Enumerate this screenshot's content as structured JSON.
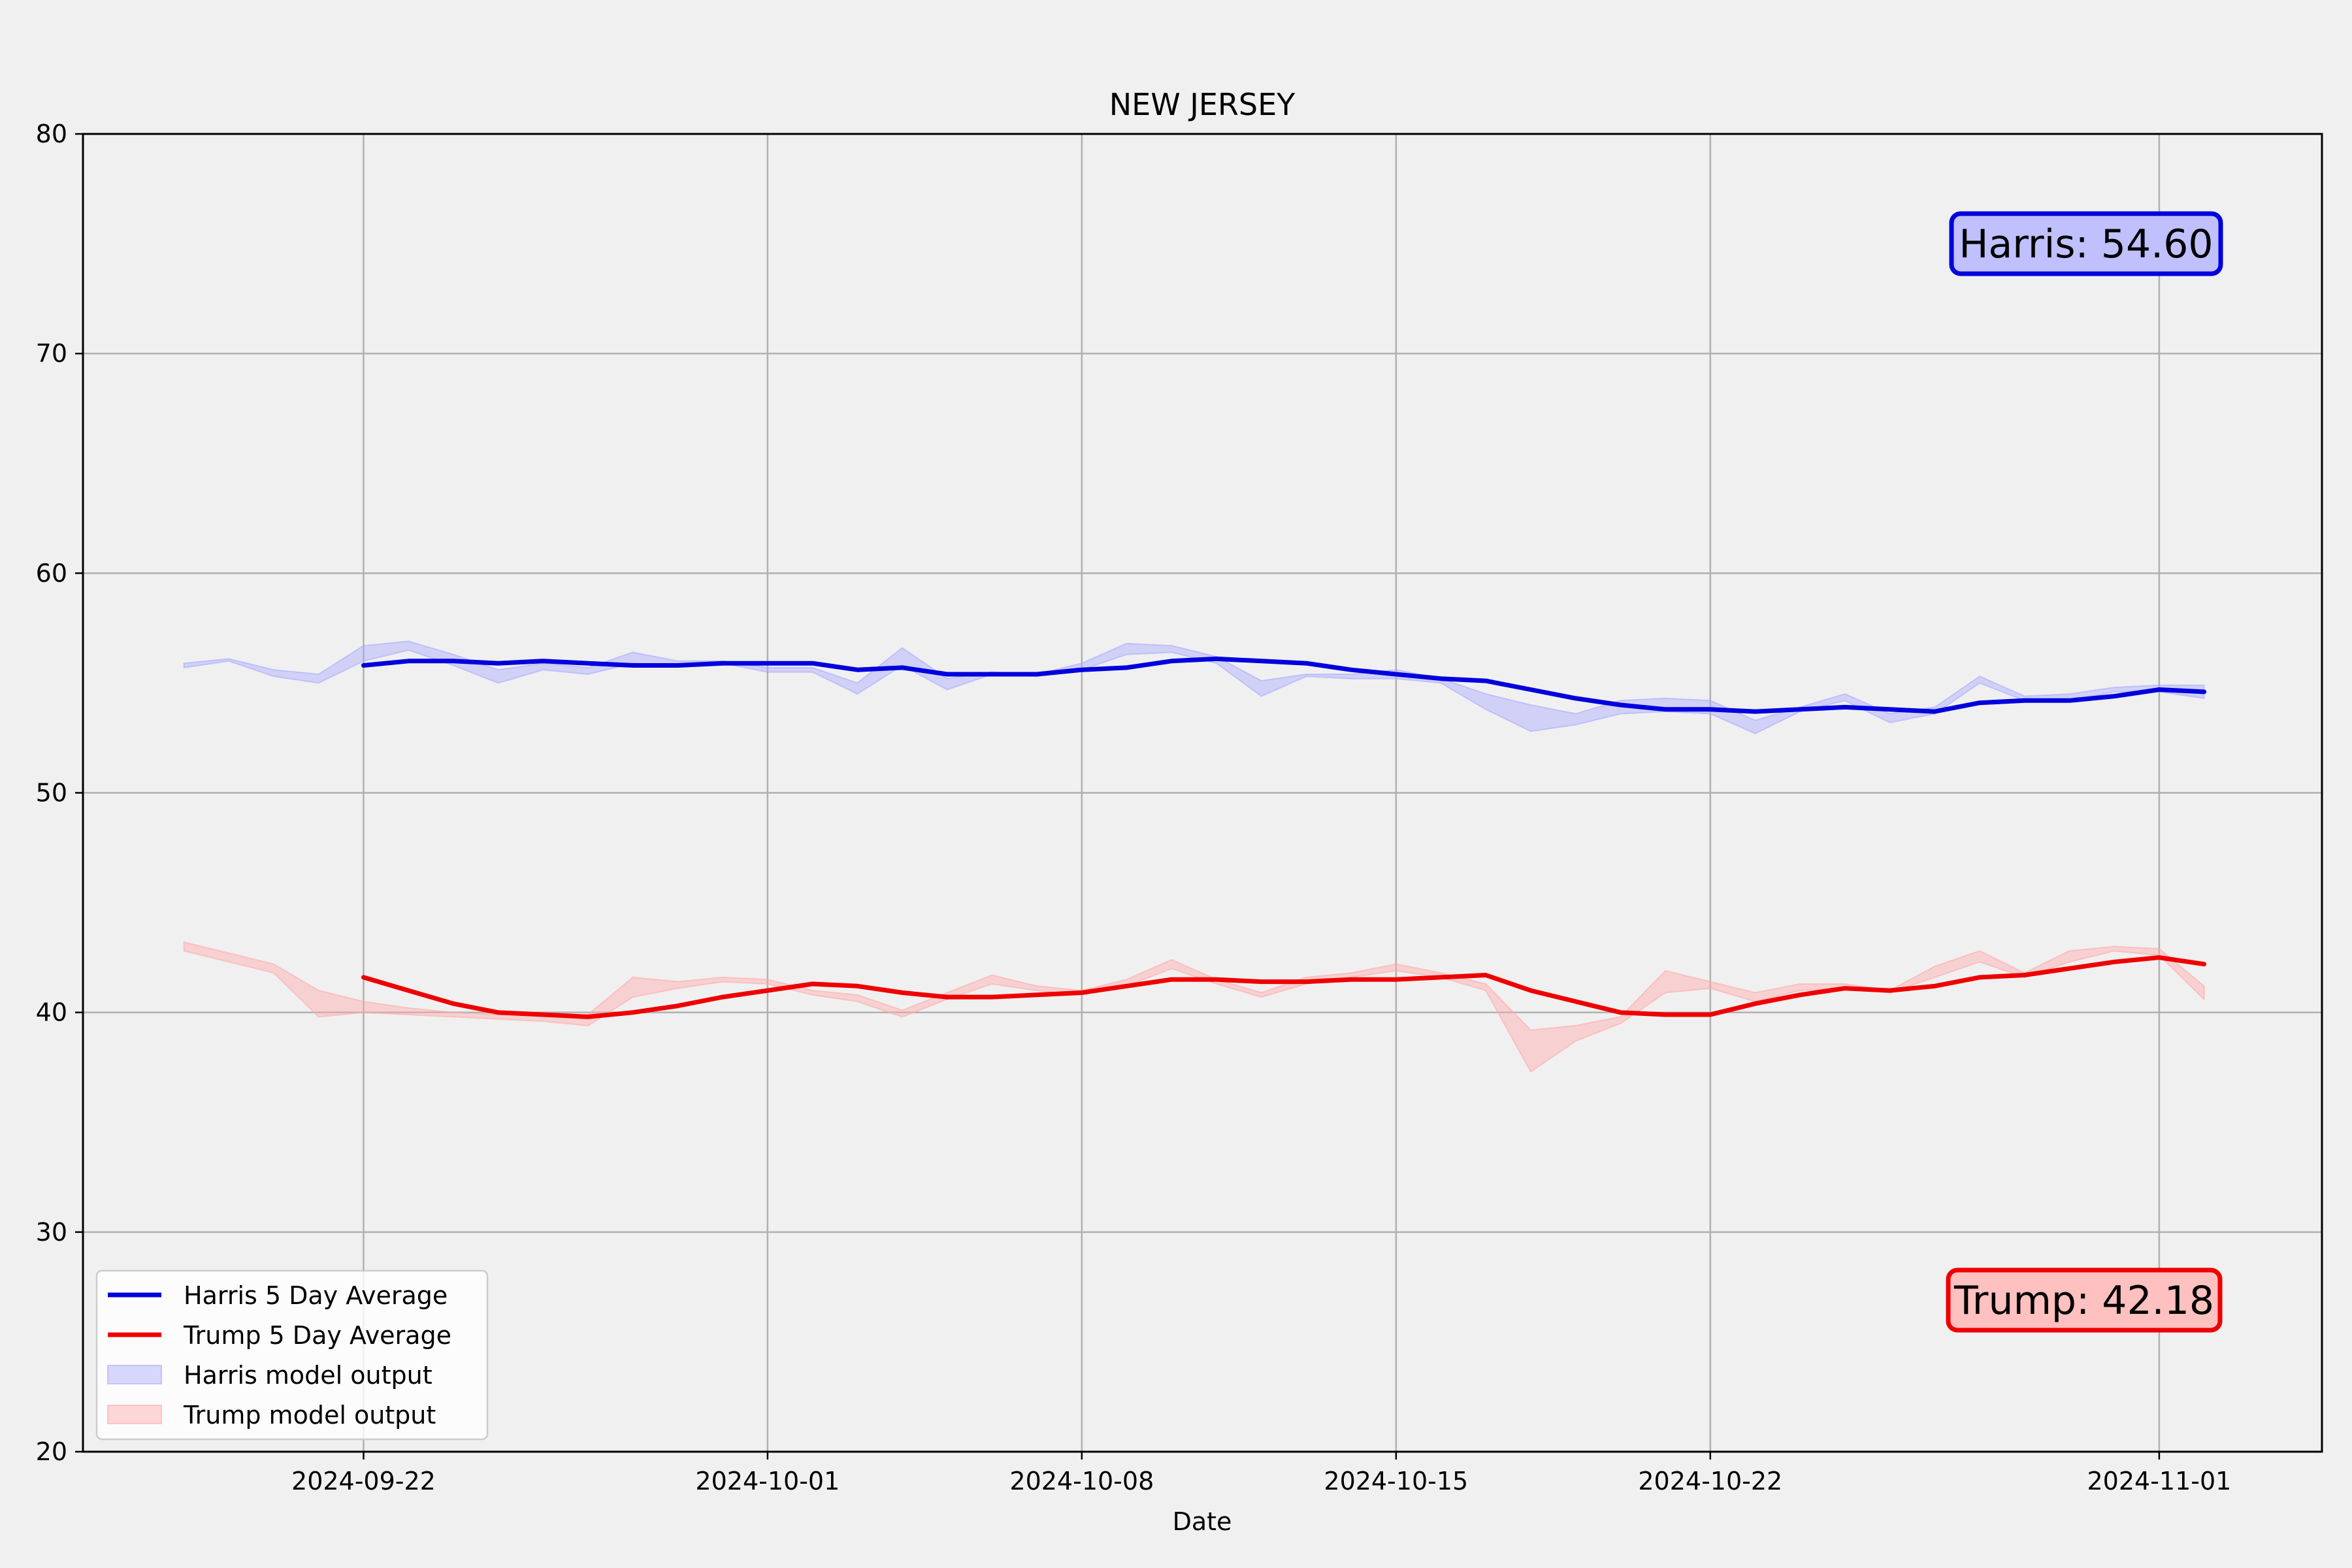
{
  "chart_data": {
    "type": "line",
    "title": "NEW JERSEY",
    "xlabel": "Date",
    "ylabel": "",
    "ylim": [
      20,
      80
    ],
    "xlim": [
      "2024-09-15T18:00",
      "2024-11-04T15:00"
    ],
    "grid": true,
    "legend_position": "lower-left",
    "x_ticks": [
      "2024-09-22",
      "2024-10-01",
      "2024-10-08",
      "2024-10-15",
      "2024-10-22",
      "2024-11-01"
    ],
    "y_ticks": [
      20,
      30,
      40,
      50,
      60,
      70,
      80
    ],
    "series": [
      {
        "name": "Harris 5 Day Average",
        "kind": "line",
        "color": "#0000dd",
        "x": [
          "2024-09-22",
          "2024-09-23",
          "2024-09-24",
          "2024-09-25",
          "2024-09-26",
          "2024-09-27",
          "2024-09-28",
          "2024-09-29",
          "2024-09-30",
          "2024-10-01",
          "2024-10-02",
          "2024-10-03",
          "2024-10-04",
          "2024-10-05",
          "2024-10-06",
          "2024-10-07",
          "2024-10-08",
          "2024-10-09",
          "2024-10-10",
          "2024-10-11",
          "2024-10-12",
          "2024-10-13",
          "2024-10-14",
          "2024-10-15",
          "2024-10-16",
          "2024-10-17",
          "2024-10-18",
          "2024-10-19",
          "2024-10-20",
          "2024-10-21",
          "2024-10-22",
          "2024-10-23",
          "2024-10-24",
          "2024-10-25",
          "2024-10-26",
          "2024-10-27",
          "2024-10-28",
          "2024-10-29",
          "2024-10-30",
          "2024-10-31",
          "2024-11-01",
          "2024-11-02"
        ],
        "values": [
          55.8,
          56.0,
          56.0,
          55.9,
          56.0,
          55.9,
          55.8,
          55.8,
          55.9,
          55.9,
          55.9,
          55.6,
          55.7,
          55.4,
          55.4,
          55.4,
          55.6,
          55.7,
          56.0,
          56.1,
          56.0,
          55.9,
          55.6,
          55.4,
          55.2,
          55.1,
          54.7,
          54.3,
          54.0,
          53.8,
          53.8,
          53.7,
          53.8,
          53.9,
          53.8,
          53.7,
          54.1,
          54.2,
          54.2,
          54.4,
          54.7,
          54.6
        ]
      },
      {
        "name": "Trump 5 Day Average",
        "kind": "line",
        "color": "#ee0000",
        "x": [
          "2024-09-22",
          "2024-09-23",
          "2024-09-24",
          "2024-09-25",
          "2024-09-26",
          "2024-09-27",
          "2024-09-28",
          "2024-09-29",
          "2024-09-30",
          "2024-10-01",
          "2024-10-02",
          "2024-10-03",
          "2024-10-04",
          "2024-10-05",
          "2024-10-06",
          "2024-10-07",
          "2024-10-08",
          "2024-10-09",
          "2024-10-10",
          "2024-10-11",
          "2024-10-12",
          "2024-10-13",
          "2024-10-14",
          "2024-10-15",
          "2024-10-16",
          "2024-10-17",
          "2024-10-18",
          "2024-10-19",
          "2024-10-20",
          "2024-10-21",
          "2024-10-22",
          "2024-10-23",
          "2024-10-24",
          "2024-10-25",
          "2024-10-26",
          "2024-10-27",
          "2024-10-28",
          "2024-10-29",
          "2024-10-30",
          "2024-10-31",
          "2024-11-01",
          "2024-11-02"
        ],
        "values": [
          41.6,
          41.0,
          40.4,
          40.0,
          39.9,
          39.8,
          40.0,
          40.3,
          40.7,
          41.0,
          41.3,
          41.2,
          40.9,
          40.7,
          40.7,
          40.8,
          40.9,
          41.2,
          41.5,
          41.5,
          41.4,
          41.4,
          41.5,
          41.5,
          41.6,
          41.7,
          41.0,
          40.5,
          40.0,
          39.9,
          39.9,
          40.4,
          40.8,
          41.1,
          41.0,
          41.2,
          41.6,
          41.7,
          42.0,
          42.3,
          42.5,
          42.2
        ]
      },
      {
        "name": "Harris model output",
        "kind": "band",
        "color": "#aaaaff",
        "x": [
          "2024-09-18",
          "2024-09-19",
          "2024-09-20",
          "2024-09-21",
          "2024-09-22",
          "2024-09-23",
          "2024-09-24",
          "2024-09-25",
          "2024-09-26",
          "2024-09-27",
          "2024-09-28",
          "2024-09-29",
          "2024-09-30",
          "2024-10-01",
          "2024-10-02",
          "2024-10-03",
          "2024-10-04",
          "2024-10-05",
          "2024-10-06",
          "2024-10-07",
          "2024-10-08",
          "2024-10-09",
          "2024-10-10",
          "2024-10-11",
          "2024-10-12",
          "2024-10-13",
          "2024-10-14",
          "2024-10-15",
          "2024-10-16",
          "2024-10-17",
          "2024-10-18",
          "2024-10-19",
          "2024-10-20",
          "2024-10-21",
          "2024-10-22",
          "2024-10-23",
          "2024-10-24",
          "2024-10-25",
          "2024-10-26",
          "2024-10-27",
          "2024-10-28",
          "2024-10-29",
          "2024-10-30",
          "2024-10-31",
          "2024-11-01",
          "2024-11-02"
        ],
        "upper": [
          55.9,
          56.1,
          55.6,
          55.4,
          56.7,
          56.9,
          56.3,
          55.6,
          55.9,
          55.7,
          56.4,
          56.0,
          56.0,
          55.7,
          55.7,
          55.0,
          56.6,
          55.2,
          55.5,
          55.4,
          55.9,
          56.8,
          56.7,
          56.2,
          55.1,
          55.4,
          55.4,
          55.6,
          55.2,
          54.5,
          54.0,
          53.6,
          54.2,
          54.3,
          54.2,
          53.3,
          53.9,
          54.5,
          53.6,
          53.9,
          55.3,
          54.4,
          54.5,
          54.8,
          54.9,
          54.9
        ],
        "lower": [
          55.7,
          56.0,
          55.3,
          55.0,
          56.0,
          56.5,
          55.8,
          55.0,
          55.6,
          55.4,
          55.9,
          55.8,
          55.9,
          55.5,
          55.5,
          54.5,
          55.8,
          54.7,
          55.4,
          55.3,
          55.6,
          56.3,
          56.4,
          55.9,
          54.4,
          55.3,
          55.2,
          55.2,
          55.0,
          53.8,
          52.8,
          53.1,
          53.6,
          53.7,
          53.6,
          52.7,
          53.7,
          54.2,
          53.2,
          53.6,
          55.0,
          54.2,
          54.2,
          54.6,
          54.6,
          54.3
        ]
      },
      {
        "name": "Trump model output",
        "kind": "band",
        "color": "#ffaaaa",
        "x": [
          "2024-09-18",
          "2024-09-19",
          "2024-09-20",
          "2024-09-21",
          "2024-09-22",
          "2024-09-23",
          "2024-09-24",
          "2024-09-25",
          "2024-09-26",
          "2024-09-27",
          "2024-09-28",
          "2024-09-29",
          "2024-09-30",
          "2024-10-01",
          "2024-10-02",
          "2024-10-03",
          "2024-10-04",
          "2024-10-05",
          "2024-10-06",
          "2024-10-07",
          "2024-10-08",
          "2024-10-09",
          "2024-10-10",
          "2024-10-11",
          "2024-10-12",
          "2024-10-13",
          "2024-10-14",
          "2024-10-15",
          "2024-10-16",
          "2024-10-17",
          "2024-10-18",
          "2024-10-19",
          "2024-10-20",
          "2024-10-21",
          "2024-10-22",
          "2024-10-23",
          "2024-10-24",
          "2024-10-25",
          "2024-10-26",
          "2024-10-27",
          "2024-10-28",
          "2024-10-29",
          "2024-10-30",
          "2024-10-31",
          "2024-11-01",
          "2024-11-02"
        ],
        "upper": [
          43.2,
          42.7,
          42.2,
          41.0,
          40.5,
          40.2,
          40.0,
          39.9,
          39.9,
          39.9,
          41.6,
          41.4,
          41.6,
          41.5,
          41.0,
          40.8,
          40.1,
          40.9,
          41.7,
          41.2,
          41.0,
          41.5,
          42.4,
          41.5,
          40.9,
          41.6,
          41.8,
          42.2,
          41.8,
          41.3,
          39.2,
          39.4,
          39.8,
          41.9,
          41.4,
          40.9,
          41.3,
          41.3,
          41.0,
          42.1,
          42.8,
          41.8,
          42.8,
          43.0,
          42.9,
          41.2
        ],
        "lower": [
          42.8,
          42.3,
          41.8,
          39.8,
          40.0,
          39.9,
          39.8,
          39.7,
          39.6,
          39.4,
          40.7,
          41.1,
          41.4,
          41.3,
          40.8,
          40.5,
          39.8,
          40.6,
          41.3,
          41.0,
          40.8,
          41.2,
          42.0,
          41.3,
          40.7,
          41.3,
          41.6,
          41.9,
          41.6,
          41.0,
          37.3,
          38.7,
          39.5,
          40.9,
          41.1,
          40.5,
          41.0,
          41.1,
          40.9,
          41.6,
          42.3,
          41.6,
          42.3,
          42.8,
          42.6,
          40.6
        ]
      }
    ],
    "annotations": [
      {
        "text": "Harris: 54.60",
        "face": "#c0c0ff",
        "edge": "#0000dd"
      },
      {
        "text": "Trump: 42.18",
        "face": "#ffc0c0",
        "edge": "#ee0000"
      }
    ]
  }
}
